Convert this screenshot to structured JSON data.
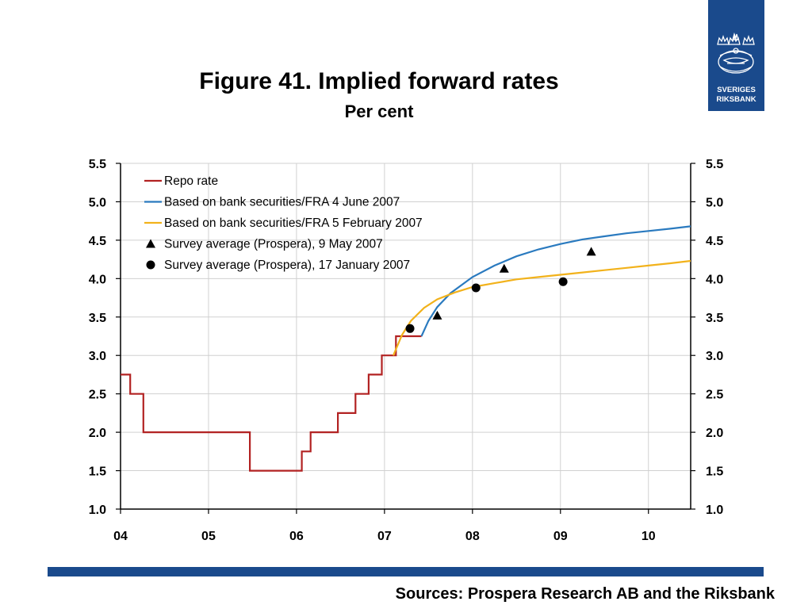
{
  "title": "Figure 41. Implied forward rates",
  "subtitle": "Per cent",
  "logo": {
    "line1": "SVERIGES",
    "line2": "RIKSBANK"
  },
  "sources": "Sources: Prospera Research AB and the Riksbank",
  "colors": {
    "brand": "#1a4a8c",
    "repo": "#b22222",
    "june": "#2a7abf",
    "feb": "#f2b21b",
    "markers": "#000000"
  },
  "chart_data": {
    "type": "line",
    "x_ticks": [
      "04",
      "05",
      "06",
      "07",
      "08",
      "09",
      "10"
    ],
    "xlim": [
      2004.0,
      2010.48
    ],
    "ylim": [
      1.0,
      5.5
    ],
    "y_ticks": [
      "1.0",
      "1.5",
      "2.0",
      "2.5",
      "3.0",
      "3.5",
      "4.0",
      "4.5",
      "5.0",
      "5.5"
    ],
    "grid": true,
    "legend_position": "top-left",
    "series": [
      {
        "name": "Repo rate",
        "kind": "step",
        "color": "#b22222",
        "points": [
          [
            2004.0,
            2.75
          ],
          [
            2004.11,
            2.75
          ],
          [
            2004.11,
            2.5
          ],
          [
            2004.26,
            2.5
          ],
          [
            2004.26,
            2.0
          ],
          [
            2005.47,
            2.0
          ],
          [
            2005.47,
            1.5
          ],
          [
            2006.06,
            1.5
          ],
          [
            2006.06,
            1.75
          ],
          [
            2006.16,
            1.75
          ],
          [
            2006.16,
            2.0
          ],
          [
            2006.47,
            2.0
          ],
          [
            2006.47,
            2.25
          ],
          [
            2006.67,
            2.25
          ],
          [
            2006.67,
            2.5
          ],
          [
            2006.82,
            2.5
          ],
          [
            2006.82,
            2.75
          ],
          [
            2006.97,
            2.75
          ],
          [
            2006.97,
            3.0
          ],
          [
            2007.13,
            3.0
          ],
          [
            2007.13,
            3.25
          ],
          [
            2007.42,
            3.25
          ]
        ]
      },
      {
        "name": "Based on bank securities/FRA 4 June 2007",
        "kind": "line",
        "color": "#2a7abf",
        "points": [
          [
            2007.42,
            3.25
          ],
          [
            2007.5,
            3.45
          ],
          [
            2007.6,
            3.63
          ],
          [
            2007.75,
            3.81
          ],
          [
            2008.0,
            4.02
          ],
          [
            2008.25,
            4.17
          ],
          [
            2008.5,
            4.29
          ],
          [
            2008.75,
            4.38
          ],
          [
            2009.0,
            4.45
          ],
          [
            2009.25,
            4.51
          ],
          [
            2009.5,
            4.55
          ],
          [
            2009.75,
            4.59
          ],
          [
            2010.0,
            4.62
          ],
          [
            2010.25,
            4.65
          ],
          [
            2010.48,
            4.68
          ]
        ]
      },
      {
        "name": "Based on bank securities/FRA 5 February 2007",
        "kind": "line",
        "color": "#f2b21b",
        "points": [
          [
            2007.1,
            3.0
          ],
          [
            2007.2,
            3.27
          ],
          [
            2007.3,
            3.45
          ],
          [
            2007.45,
            3.62
          ],
          [
            2007.6,
            3.73
          ],
          [
            2007.8,
            3.82
          ],
          [
            2008.0,
            3.89
          ],
          [
            2008.25,
            3.94
          ],
          [
            2008.5,
            3.99
          ],
          [
            2008.75,
            4.02
          ],
          [
            2009.0,
            4.05
          ],
          [
            2009.25,
            4.08
          ],
          [
            2009.5,
            4.11
          ],
          [
            2009.75,
            4.14
          ],
          [
            2010.0,
            4.17
          ],
          [
            2010.25,
            4.2
          ],
          [
            2010.48,
            4.23
          ]
        ]
      },
      {
        "name": "Survey average (Prospera), 9 May 2007",
        "kind": "triangle",
        "color": "#000000",
        "points": [
          [
            2007.6,
            3.52
          ],
          [
            2008.36,
            4.13
          ],
          [
            2009.35,
            4.35
          ]
        ]
      },
      {
        "name": "Survey average (Prospera), 17 January 2007",
        "kind": "circle",
        "color": "#000000",
        "points": [
          [
            2007.29,
            3.35
          ],
          [
            2008.04,
            3.88
          ],
          [
            2009.03,
            3.96
          ]
        ]
      }
    ]
  }
}
